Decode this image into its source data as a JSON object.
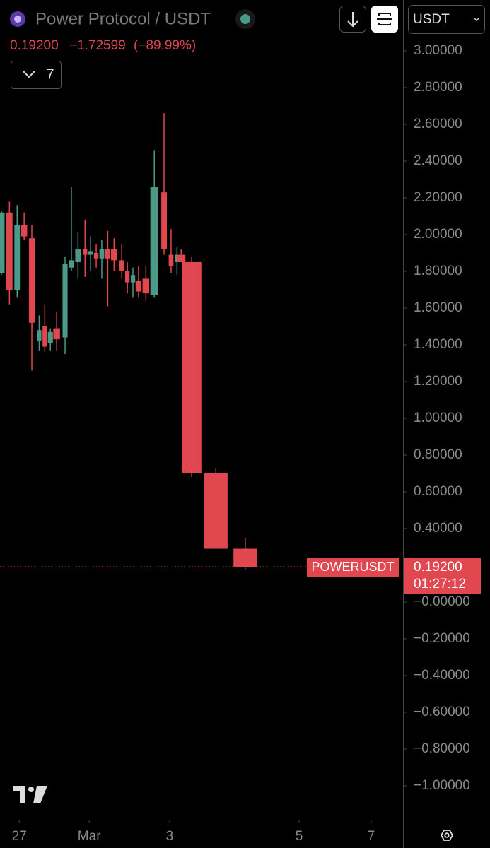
{
  "chart_data": {
    "type": "candlestick",
    "title": "Power Protocol / USDT",
    "price": "0.19200",
    "change": "−1.72599",
    "change_percent": "(−89.99%)",
    "indicator_count": "7",
    "currency": "USDT",
    "symbol": "POWERUSDT",
    "last_price": {
      "value": 0.192,
      "label": "0.19200"
    },
    "countdown": "01:27:12",
    "up_color": "#4a9a87",
    "down_color": "#e0474e",
    "x": [
      -0.51,
      -0.28,
      -0.06,
      0.14,
      0.36,
      0.57,
      0.73,
      0.89,
      1.07,
      1.31,
      1.49,
      1.68,
      1.88,
      2.04,
      2.2,
      2.36,
      2.53,
      2.71,
      2.93,
      3.09,
      3.25,
      3.41,
      3.62,
      3.86,
      4.14,
      4.34,
      4.51,
      4.63,
      4.93,
      5.62,
      6.46
    ],
    "open": [
      1.79,
      2.12,
      1.7,
      2.05,
      1.98,
      1.42,
      1.5,
      1.41,
      1.49,
      1.44,
      1.82,
      1.85,
      1.92,
      1.89,
      1.9,
      1.87,
      1.92,
      1.92,
      1.86,
      1.8,
      1.74,
      1.75,
      1.76,
      1.67,
      2.23,
      1.89,
      1.85,
      1.89,
      1.85,
      0.7,
      0.29
    ],
    "high": [
      2.13,
      2.18,
      2.16,
      2.12,
      2.05,
      1.56,
      1.62,
      1.49,
      1.58,
      1.88,
      2.26,
      2.01,
      2.08,
      1.99,
      1.95,
      1.97,
      2.02,
      1.98,
      1.95,
      1.85,
      1.82,
      1.83,
      1.83,
      2.46,
      2.66,
      2.03,
      1.93,
      1.92,
      1.88,
      0.73,
      0.35
    ],
    "low": [
      1.78,
      1.62,
      1.66,
      1.97,
      1.26,
      1.37,
      1.36,
      1.37,
      1.37,
      1.35,
      1.8,
      1.76,
      1.77,
      1.8,
      1.82,
      1.76,
      1.61,
      1.8,
      1.76,
      1.68,
      1.66,
      1.66,
      1.64,
      1.66,
      1.89,
      1.79,
      1.78,
      1.85,
      0.68,
      0.29,
      0.18
    ],
    "close": [
      2.12,
      1.7,
      2.05,
      1.99,
      1.52,
      1.48,
      1.39,
      1.47,
      1.43,
      1.84,
      1.86,
      1.92,
      1.89,
      1.91,
      1.87,
      1.92,
      1.87,
      1.86,
      1.8,
      1.74,
      1.78,
      1.69,
      1.68,
      2.26,
      1.92,
      1.83,
      1.89,
      1.85,
      0.7,
      0.29,
      0.192
    ],
    "xlim": [
      -0.55,
      10.97
    ],
    "xticks": [
      {
        "value": 0,
        "label": "27"
      },
      {
        "value": 2,
        "label": "Mar"
      },
      {
        "value": 4.3,
        "label": "3"
      },
      {
        "value": 8,
        "label": "5"
      },
      {
        "value": 10.06,
        "label": "7"
      }
    ],
    "ylim": [
      -1.185,
      3.277
    ],
    "yticks": [
      {
        "value": 3.0,
        "label": "3.00000"
      },
      {
        "value": 2.8,
        "label": "2.80000"
      },
      {
        "value": 2.6,
        "label": "2.60000"
      },
      {
        "value": 2.4,
        "label": "2.40000"
      },
      {
        "value": 2.2,
        "label": "2.20000"
      },
      {
        "value": 2.0,
        "label": "2.00000"
      },
      {
        "value": 1.8,
        "label": "1.80000"
      },
      {
        "value": 1.6,
        "label": "1.60000"
      },
      {
        "value": 1.4,
        "label": "1.40000"
      },
      {
        "value": 1.2,
        "label": "1.20000"
      },
      {
        "value": 1.0,
        "label": "1.00000"
      },
      {
        "value": 0.8,
        "label": "0.80000"
      },
      {
        "value": 0.6,
        "label": "0.60000"
      },
      {
        "value": 0.4,
        "label": "0.40000"
      },
      {
        "value": 0,
        "label": "−0.00000"
      },
      {
        "value": -0.2,
        "label": "−0.20000"
      },
      {
        "value": -0.4,
        "label": "−0.40000"
      },
      {
        "value": -0.6,
        "label": "−0.60000"
      },
      {
        "value": -0.8,
        "label": "−0.80000"
      },
      {
        "value": -1.0,
        "label": "−1.00000"
      }
    ]
  }
}
